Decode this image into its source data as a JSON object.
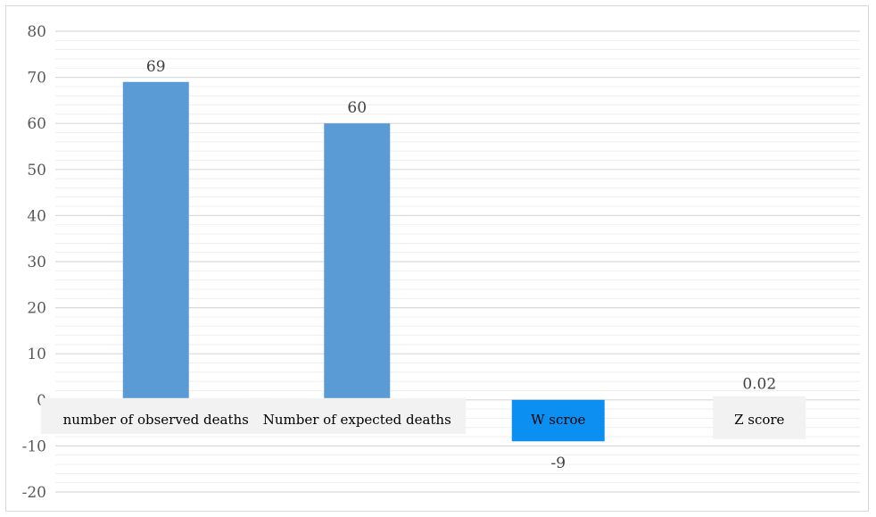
{
  "chart_data": {
    "type": "bar",
    "categories": [
      "number of observed deaths",
      "Number of expected deaths",
      "W scroe",
      "Z score"
    ],
    "values": [
      69,
      60,
      -9,
      0.02
    ],
    "data_labels": [
      "69",
      "60",
      "-9",
      "0.02"
    ],
    "ylim": [
      -20,
      80
    ],
    "yticks": [
      "80",
      "70",
      "60",
      "50",
      "40",
      "30",
      "20",
      "10",
      "0",
      "-10",
      "-20"
    ],
    "grid": true,
    "title": "",
    "xlabel": "",
    "ylabel": "",
    "colors": {
      "bar": "#5b9bd5",
      "highlight_box": "#0b8ff0",
      "label_box": "#f2f2f2",
      "grid": "#d9d9d9"
    }
  }
}
